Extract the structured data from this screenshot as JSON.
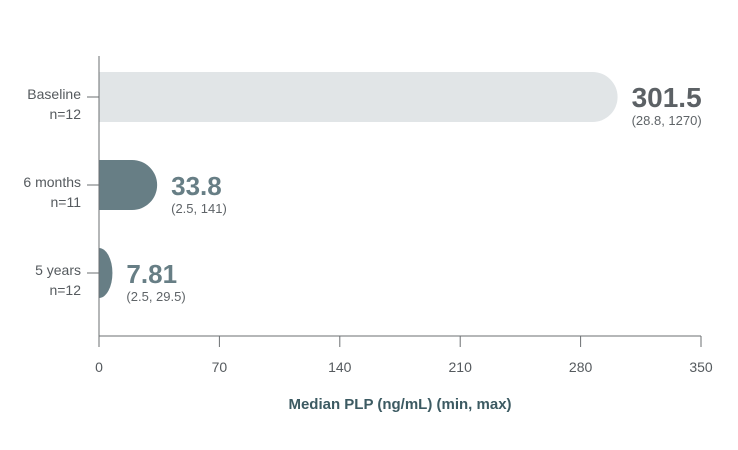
{
  "chart_data": {
    "type": "bar",
    "title": "",
    "xlabel": "Median PLP (ng/mL) (min, max)",
    "ylabel": "",
    "xlim": [
      0,
      350
    ],
    "xticks": [
      0,
      70,
      140,
      210,
      280,
      350
    ],
    "grid": false,
    "legend": "none",
    "categories": [
      {
        "name": "Baseline",
        "n": "n=12"
      },
      {
        "name": "6 months",
        "n": "n=11"
      },
      {
        "name": "5 years",
        "n": "n=12"
      }
    ],
    "values": [
      301.5,
      33.8,
      7.81
    ],
    "value_labels": [
      "301.5",
      "33.8",
      "7.81"
    ],
    "ranges": [
      "(28.8, 1270)",
      "(2.5, 141)",
      "(2.5, 29.5)"
    ],
    "colors": {
      "bars": [
        "#e1e5e7",
        "#677e85",
        "#677e85"
      ],
      "value_text": [
        "#5c6165",
        "#677e85",
        "#677e85"
      ],
      "axis": "#6b6f72",
      "xlabel": "#3c5a62"
    }
  }
}
